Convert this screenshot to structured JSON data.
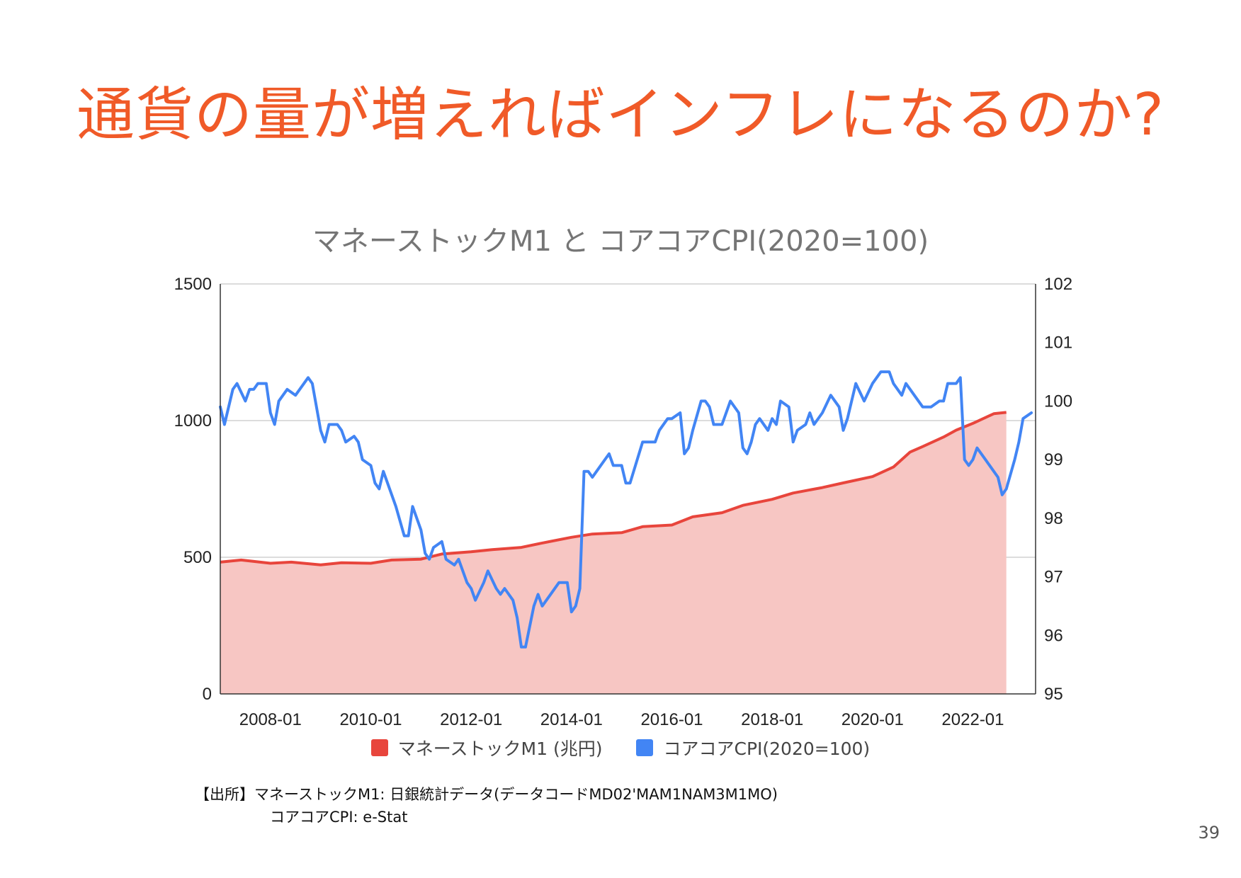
{
  "slide": {
    "title": "通貨の量が増えればインフレになるのか?",
    "page_number": "39",
    "source_line1": "【出所】マネーストックM1: 日銀統計データ(データコードMD02'MAM1NAM3M1MO)",
    "source_line2": "コアコアCPI: e-Stat"
  },
  "chart_data": {
    "type": "line",
    "title": "マネーストックM1 と コアコアCPI(2020=100)",
    "grid": true,
    "legend_position": "bottom",
    "x_ticks": [
      "2008-01",
      "2010-01",
      "2012-01",
      "2014-01",
      "2016-01",
      "2018-01",
      "2020-01",
      "2022-01"
    ],
    "y_left": {
      "ticks": [
        "0",
        "500",
        "1000",
        "1500"
      ],
      "range": [
        0,
        1500
      ]
    },
    "y_right": {
      "ticks": [
        "95",
        "96",
        "97",
        "98",
        "99",
        "100",
        "101",
        "102"
      ],
      "range": [
        95,
        102
      ]
    },
    "series": [
      {
        "name": "マネーストックM1 (兆円)",
        "type": "area",
        "axis": "left",
        "color": "#e8453c",
        "fill": "#f7c6c3",
        "points": [
          [
            "2007-01",
            482
          ],
          [
            "2007-06",
            490
          ],
          [
            "2008-01",
            478
          ],
          [
            "2008-06",
            482
          ],
          [
            "2009-01",
            472
          ],
          [
            "2009-06",
            480
          ],
          [
            "2010-01",
            478
          ],
          [
            "2010-06",
            490
          ],
          [
            "2011-01",
            493
          ],
          [
            "2011-06",
            512
          ],
          [
            "2012-01",
            520
          ],
          [
            "2012-06",
            528
          ],
          [
            "2013-01",
            536
          ],
          [
            "2013-06",
            552
          ],
          [
            "2014-01",
            573
          ],
          [
            "2014-06",
            585
          ],
          [
            "2015-01",
            590
          ],
          [
            "2015-06",
            612
          ],
          [
            "2016-01",
            618
          ],
          [
            "2016-06",
            648
          ],
          [
            "2017-01",
            663
          ],
          [
            "2017-06",
            690
          ],
          [
            "2018-01",
            712
          ],
          [
            "2018-06",
            735
          ],
          [
            "2019-01",
            755
          ],
          [
            "2019-06",
            772
          ],
          [
            "2020-01",
            795
          ],
          [
            "2020-06",
            830
          ],
          [
            "2020-10",
            885
          ],
          [
            "2021-01",
            905
          ],
          [
            "2021-06",
            940
          ],
          [
            "2021-09",
            965
          ],
          [
            "2022-01",
            990
          ],
          [
            "2022-06",
            1025
          ],
          [
            "2022-09",
            1030
          ]
        ]
      },
      {
        "name": "コアコアCPI(2020=100)",
        "type": "line",
        "axis": "right",
        "color": "#4285f4",
        "points": [
          [
            "2007-01",
            99.9
          ],
          [
            "2007-02",
            99.6
          ],
          [
            "2007-04",
            100.2
          ],
          [
            "2007-05",
            100.3
          ],
          [
            "2007-07",
            100.0
          ],
          [
            "2007-08",
            100.2
          ],
          [
            "2007-09",
            100.2
          ],
          [
            "2007-10",
            100.3
          ],
          [
            "2007-12",
            100.3
          ],
          [
            "2008-01",
            99.8
          ],
          [
            "2008-02",
            99.6
          ],
          [
            "2008-03",
            100.0
          ],
          [
            "2008-05",
            100.2
          ],
          [
            "2008-07",
            100.1
          ],
          [
            "2008-09",
            100.3
          ],
          [
            "2008-10",
            100.4
          ],
          [
            "2008-11",
            100.3
          ],
          [
            "2009-01",
            99.5
          ],
          [
            "2009-02",
            99.3
          ],
          [
            "2009-03",
            99.6
          ],
          [
            "2009-05",
            99.6
          ],
          [
            "2009-06",
            99.5
          ],
          [
            "2009-07",
            99.3
          ],
          [
            "2009-09",
            99.4
          ],
          [
            "2009-10",
            99.3
          ],
          [
            "2009-11",
            99.0
          ],
          [
            "2010-01",
            98.9
          ],
          [
            "2010-02",
            98.6
          ],
          [
            "2010-03",
            98.5
          ],
          [
            "2010-04",
            98.8
          ],
          [
            "2010-05",
            98.6
          ],
          [
            "2010-07",
            98.2
          ],
          [
            "2010-09",
            97.7
          ],
          [
            "2010-10",
            97.7
          ],
          [
            "2010-11",
            98.2
          ],
          [
            "2011-01",
            97.8
          ],
          [
            "2011-02",
            97.4
          ],
          [
            "2011-03",
            97.3
          ],
          [
            "2011-04",
            97.5
          ],
          [
            "2011-06",
            97.6
          ],
          [
            "2011-07",
            97.3
          ],
          [
            "2011-09",
            97.2
          ],
          [
            "2011-10",
            97.3
          ],
          [
            "2011-12",
            96.9
          ],
          [
            "2012-01",
            96.8
          ],
          [
            "2012-02",
            96.6
          ],
          [
            "2012-04",
            96.9
          ],
          [
            "2012-05",
            97.1
          ],
          [
            "2012-07",
            96.8
          ],
          [
            "2012-08",
            96.7
          ],
          [
            "2012-09",
            96.8
          ],
          [
            "2012-11",
            96.6
          ],
          [
            "2012-12",
            96.3
          ],
          [
            "2013-01",
            95.8
          ],
          [
            "2013-02",
            95.8
          ],
          [
            "2013-04",
            96.5
          ],
          [
            "2013-05",
            96.7
          ],
          [
            "2013-06",
            96.5
          ],
          [
            "2013-08",
            96.7
          ],
          [
            "2013-10",
            96.9
          ],
          [
            "2013-12",
            96.9
          ],
          [
            "2014-01",
            96.4
          ],
          [
            "2014-02",
            96.5
          ],
          [
            "2014-03",
            96.8
          ],
          [
            "2014-04",
            98.8
          ],
          [
            "2014-05",
            98.8
          ],
          [
            "2014-06",
            98.7
          ],
          [
            "2014-07",
            98.8
          ],
          [
            "2014-09",
            99.0
          ],
          [
            "2014-10",
            99.1
          ],
          [
            "2014-11",
            98.9
          ],
          [
            "2015-01",
            98.9
          ],
          [
            "2015-02",
            98.6
          ],
          [
            "2015-03",
            98.6
          ],
          [
            "2015-06",
            99.3
          ],
          [
            "2015-09",
            99.3
          ],
          [
            "2015-10",
            99.5
          ],
          [
            "2015-12",
            99.7
          ],
          [
            "2016-01",
            99.7
          ],
          [
            "2016-03",
            99.8
          ],
          [
            "2016-04",
            99.1
          ],
          [
            "2016-05",
            99.2
          ],
          [
            "2016-06",
            99.5
          ],
          [
            "2016-08",
            100.0
          ],
          [
            "2016-09",
            100.0
          ],
          [
            "2016-10",
            99.9
          ],
          [
            "2016-11",
            99.6
          ],
          [
            "2017-01",
            99.6
          ],
          [
            "2017-03",
            100.0
          ],
          [
            "2017-05",
            99.8
          ],
          [
            "2017-06",
            99.2
          ],
          [
            "2017-07",
            99.1
          ],
          [
            "2017-08",
            99.3
          ],
          [
            "2017-09",
            99.6
          ],
          [
            "2017-10",
            99.7
          ],
          [
            "2017-12",
            99.5
          ],
          [
            "2018-01",
            99.7
          ],
          [
            "2018-02",
            99.6
          ],
          [
            "2018-03",
            100.0
          ],
          [
            "2018-05",
            99.9
          ],
          [
            "2018-06",
            99.3
          ],
          [
            "2018-07",
            99.5
          ],
          [
            "2018-09",
            99.6
          ],
          [
            "2018-10",
            99.8
          ],
          [
            "2018-11",
            99.6
          ],
          [
            "2019-01",
            99.8
          ],
          [
            "2019-03",
            100.1
          ],
          [
            "2019-05",
            99.9
          ],
          [
            "2019-06",
            99.5
          ],
          [
            "2019-07",
            99.7
          ],
          [
            "2019-09",
            100.3
          ],
          [
            "2019-11",
            100.0
          ],
          [
            "2020-01",
            100.3
          ],
          [
            "2020-03",
            100.5
          ],
          [
            "2020-05",
            100.5
          ],
          [
            "2020-06",
            100.3
          ],
          [
            "2020-08",
            100.1
          ],
          [
            "2020-09",
            100.3
          ],
          [
            "2020-11",
            100.1
          ],
          [
            "2021-01",
            99.9
          ],
          [
            "2021-03",
            99.9
          ],
          [
            "2021-05",
            100.0
          ],
          [
            "2021-06",
            100.0
          ],
          [
            "2021-07",
            100.3
          ],
          [
            "2021-09",
            100.3
          ],
          [
            "2021-10",
            100.4
          ],
          [
            "2021-11",
            99.0
          ],
          [
            "2021-12",
            98.9
          ],
          [
            "2022-01",
            99.0
          ],
          [
            "2022-02",
            99.2
          ],
          [
            "2022-04",
            99.0
          ],
          [
            "2022-06",
            98.8
          ],
          [
            "2022-07",
            98.7
          ],
          [
            "2022-08",
            98.4
          ],
          [
            "2022-09",
            98.5
          ],
          [
            "2022-11",
            99.0
          ],
          [
            "2022-12",
            99.3
          ],
          [
            "2023-01",
            99.7
          ],
          [
            "2023-03",
            99.8
          ]
        ]
      }
    ]
  }
}
